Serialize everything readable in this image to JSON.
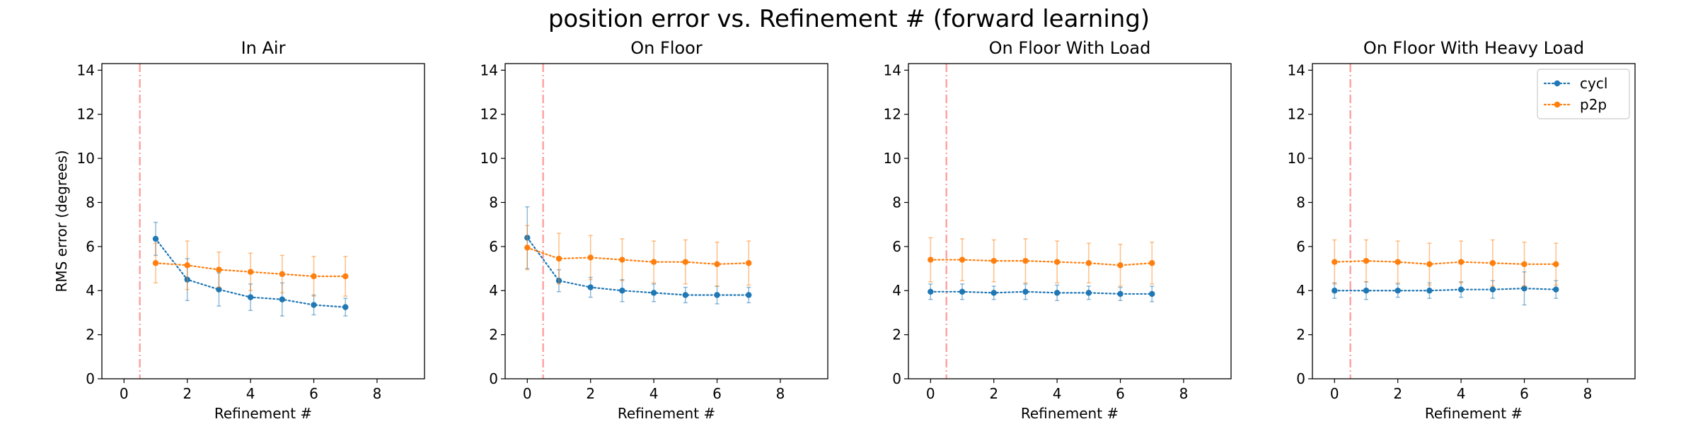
{
  "figure": {
    "title": "position error vs. Refinement # (forward learning)"
  },
  "colors": {
    "cycl": "#1f77b4",
    "p2p": "#ff7f0e",
    "marker_line": "#ff9999"
  },
  "chart_data": [
    {
      "type": "line",
      "title": "In Air",
      "xlabel": "Refinement #",
      "ylabel": "RMS error (degrees)",
      "xlim": [
        -0.7,
        9.5
      ],
      "ylim": [
        0,
        14.3
      ],
      "xticks": [
        0,
        2,
        4,
        6,
        8
      ],
      "yticks": [
        0,
        2,
        4,
        6,
        8,
        10,
        12,
        14
      ],
      "vline_x": 0.5,
      "legend": false,
      "series": [
        {
          "name": "cycl",
          "color": "#1f77b4",
          "x": [
            1,
            2,
            3,
            4,
            5,
            6,
            7
          ],
          "y": [
            6.35,
            4.5,
            4.05,
            3.7,
            3.6,
            3.35,
            3.25
          ],
          "err": [
            0.75,
            0.95,
            0.75,
            0.6,
            0.75,
            0.45,
            0.4
          ]
        },
        {
          "name": "p2p",
          "color": "#ff7f0e",
          "x": [
            1,
            2,
            3,
            4,
            5,
            6,
            7
          ],
          "y": [
            5.25,
            5.15,
            4.95,
            4.85,
            4.75,
            4.65,
            4.65
          ],
          "err": [
            0.9,
            1.1,
            0.8,
            0.85,
            0.85,
            0.9,
            0.9
          ]
        }
      ]
    },
    {
      "type": "line",
      "title": "On Floor",
      "xlabel": "Refinement #",
      "ylabel": "",
      "xlim": [
        -0.7,
        9.5
      ],
      "ylim": [
        0,
        14.3
      ],
      "xticks": [
        0,
        2,
        4,
        6,
        8
      ],
      "yticks": [
        0,
        2,
        4,
        6,
        8,
        10,
        12,
        14
      ],
      "vline_x": 0.5,
      "legend": false,
      "series": [
        {
          "name": "cycl",
          "color": "#1f77b4",
          "x": [
            0,
            1,
            2,
            3,
            4,
            5,
            6,
            7
          ],
          "y": [
            6.4,
            4.45,
            4.15,
            4.0,
            3.9,
            3.8,
            3.8,
            3.8
          ],
          "err": [
            1.4,
            0.5,
            0.45,
            0.5,
            0.4,
            0.35,
            0.4,
            0.35
          ]
        },
        {
          "name": "p2p",
          "color": "#ff7f0e",
          "x": [
            0,
            1,
            2,
            3,
            4,
            5,
            6,
            7
          ],
          "y": [
            5.95,
            5.45,
            5.5,
            5.4,
            5.3,
            5.3,
            5.2,
            5.25
          ],
          "err": [
            1.0,
            1.15,
            1.0,
            0.95,
            0.95,
            1.0,
            1.0,
            1.0
          ]
        }
      ]
    },
    {
      "type": "line",
      "title": "On Floor With Load",
      "xlabel": "Refinement #",
      "ylabel": "",
      "xlim": [
        -0.7,
        9.5
      ],
      "ylim": [
        0,
        14.3
      ],
      "xticks": [
        0,
        2,
        4,
        6,
        8
      ],
      "yticks": [
        0,
        2,
        4,
        6,
        8,
        10,
        12,
        14
      ],
      "vline_x": 0.5,
      "legend": false,
      "series": [
        {
          "name": "cycl",
          "color": "#1f77b4",
          "x": [
            0,
            1,
            2,
            3,
            4,
            5,
            6,
            7
          ],
          "y": [
            3.95,
            3.95,
            3.9,
            3.95,
            3.9,
            3.9,
            3.85,
            3.85
          ],
          "err": [
            0.35,
            0.35,
            0.3,
            0.35,
            0.35,
            0.3,
            0.3,
            0.35
          ]
        },
        {
          "name": "p2p",
          "color": "#ff7f0e",
          "x": [
            0,
            1,
            2,
            3,
            4,
            5,
            6,
            7
          ],
          "y": [
            5.4,
            5.4,
            5.35,
            5.35,
            5.3,
            5.25,
            5.15,
            5.25
          ],
          "err": [
            1.0,
            0.95,
            0.95,
            1.0,
            0.95,
            0.9,
            0.95,
            0.95
          ]
        }
      ]
    },
    {
      "type": "line",
      "title": "On Floor With Heavy Load",
      "xlabel": "Refinement #",
      "ylabel": "",
      "xlim": [
        -0.7,
        9.5
      ],
      "ylim": [
        0,
        14.3
      ],
      "xticks": [
        0,
        2,
        4,
        6,
        8
      ],
      "yticks": [
        0,
        2,
        4,
        6,
        8,
        10,
        12,
        14
      ],
      "vline_x": 0.5,
      "legend": true,
      "legend_position": "top-right",
      "series": [
        {
          "name": "cycl",
          "color": "#1f77b4",
          "x": [
            0,
            1,
            2,
            3,
            4,
            5,
            6,
            7
          ],
          "y": [
            4.0,
            4.0,
            4.0,
            4.0,
            4.05,
            4.05,
            4.1,
            4.05
          ],
          "err": [
            0.35,
            0.4,
            0.3,
            0.35,
            0.35,
            0.4,
            0.75,
            0.4
          ]
        },
        {
          "name": "p2p",
          "color": "#ff7f0e",
          "x": [
            0,
            1,
            2,
            3,
            4,
            5,
            6,
            7
          ],
          "y": [
            5.3,
            5.35,
            5.3,
            5.2,
            5.3,
            5.25,
            5.2,
            5.2
          ],
          "err": [
            1.0,
            0.95,
            0.95,
            0.95,
            0.95,
            1.05,
            1.0,
            0.95
          ]
        }
      ]
    }
  ]
}
